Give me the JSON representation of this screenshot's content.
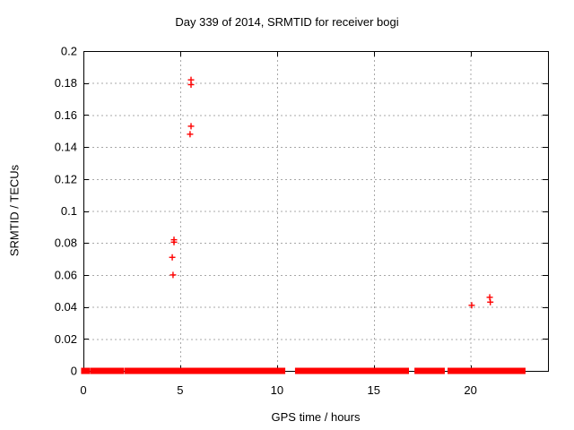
{
  "chart_data": {
    "type": "scatter",
    "title": "Day 339 of 2014, SRMTID for receiver bogi",
    "xlabel": "GPS time / hours",
    "ylabel": "SRMTID / TECUs",
    "xlim": [
      0,
      24
    ],
    "ylim": [
      0,
      0.2
    ],
    "xticks": {
      "values": [
        0,
        5,
        10,
        15,
        20
      ],
      "labels": [
        "0",
        "5",
        "10",
        "15",
        "20"
      ]
    },
    "yticks": {
      "values": [
        0,
        0.02,
        0.04,
        0.06,
        0.08,
        0.1,
        0.12,
        0.14,
        0.16,
        0.18,
        0.2
      ],
      "labels": [
        "0",
        "0.02",
        "0.04",
        "0.06",
        "0.08",
        "0.1",
        "0.12",
        "0.14",
        "0.16",
        "0.18",
        "0.2"
      ]
    },
    "grid": true,
    "legend": "none",
    "marker": "plus",
    "colors": {
      "marker": "#ff0000",
      "grid": "#a8a8a8",
      "frame": "#000000",
      "text": "#000000",
      "background": "#ffffff"
    },
    "outlier_points": [
      {
        "x": 4.68,
        "y": 0.082
      },
      {
        "x": 4.68,
        "y": 0.0805
      },
      {
        "x": 4.59,
        "y": 0.071
      },
      {
        "x": 4.63,
        "y": 0.06
      },
      {
        "x": 5.56,
        "y": 0.182
      },
      {
        "x": 5.56,
        "y": 0.179
      },
      {
        "x": 5.56,
        "y": 0.153
      },
      {
        "x": 5.51,
        "y": 0.148
      },
      {
        "x": 20.06,
        "y": 0.041
      },
      {
        "x": 20.99,
        "y": 0.046
      },
      {
        "x": 21.02,
        "y": 0.043
      }
    ],
    "baseline_value": 0,
    "baseline_segments_hours": [
      [
        0.02,
        0.22
      ],
      [
        0.51,
        0.6
      ],
      [
        0.79,
        0.93
      ],
      [
        0.97,
        1.12
      ],
      [
        1.16,
        1.48
      ],
      [
        1.58,
        1.95
      ],
      [
        2.25,
        2.4
      ],
      [
        2.55,
        2.78
      ],
      [
        2.87,
        3.0
      ],
      [
        3.06,
        3.24
      ],
      [
        3.29,
        3.38
      ],
      [
        3.41,
        3.86
      ],
      [
        3.91,
        4.17
      ],
      [
        4.3,
        6.42
      ],
      [
        6.5,
        8.2
      ],
      [
        8.34,
        8.9
      ],
      [
        9.04,
        9.27
      ],
      [
        9.36,
        9.59
      ],
      [
        9.82,
        9.96
      ],
      [
        10.15,
        10.29
      ],
      [
        11.07,
        11.54
      ],
      [
        11.58,
        12.0
      ],
      [
        12.14,
        12.28
      ],
      [
        12.37,
        12.93
      ],
      [
        13.07,
        13.2
      ],
      [
        13.39,
        14.32
      ],
      [
        14.36,
        14.78
      ],
      [
        14.83,
        16.17
      ],
      [
        16.22,
        16.68
      ],
      [
        17.24,
        17.56
      ],
      [
        17.61,
        18.16
      ],
      [
        18.26,
        18.53
      ],
      [
        18.95,
        19.41
      ],
      [
        19.46,
        20.25
      ],
      [
        20.48,
        21.08
      ],
      [
        21.17,
        22.7
      ]
    ]
  }
}
